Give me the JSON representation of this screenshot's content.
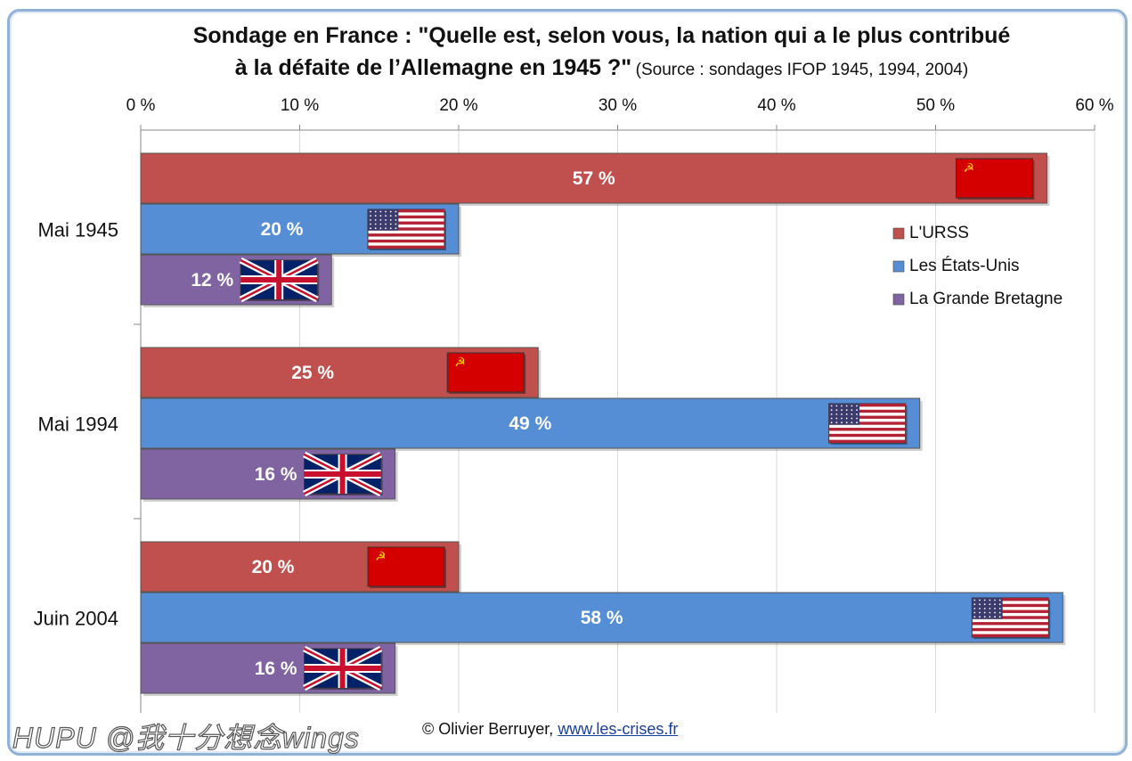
{
  "title_line1": "Sondage en France : \"Quelle est, selon vous, la nation qui a le plus contribué",
  "title_line2": "à la défaite de l’Allemagne en 1945 ?\"",
  "subtitle": "(Source : sondages IFOP 1945, 1994, 2004)",
  "credit_text": "© Olivier Berruyer,",
  "credit_link": "www.les-crises.fr",
  "watermark": "HUPU @我十分想念wings",
  "chart_data": {
    "type": "bar",
    "orientation": "horizontal",
    "categories": [
      "Mai 1945",
      "Mai 1994",
      "Juin 2004"
    ],
    "series": [
      {
        "name": "L'URSS",
        "values": [
          57,
          25,
          20
        ],
        "labels": [
          "57 %",
          "25 %",
          "20 %"
        ],
        "color": "#c0504d",
        "flag": "ussr-flag"
      },
      {
        "name": "Les États-Unis",
        "values": [
          20,
          49,
          58
        ],
        "labels": [
          "20 %",
          "49 %",
          "58 %"
        ],
        "color": "#558ed5",
        "flag": "usa-flag"
      },
      {
        "name": "La Grande Bretagne",
        "values": [
          12,
          16,
          16
        ],
        "labels": [
          "12 %",
          "16 %",
          "16 %"
        ],
        "color": "#8064a2",
        "flag": "uk-flag"
      }
    ],
    "xlim": [
      0,
      60
    ],
    "ticks": [
      "0 %",
      "10 %",
      "20 %",
      "30 %",
      "40 %",
      "50 %",
      "60 %"
    ],
    "tick_values": [
      0,
      10,
      20,
      30,
      40,
      50,
      60
    ],
    "axis_position": "top",
    "grid": true,
    "legend_position": "right"
  }
}
